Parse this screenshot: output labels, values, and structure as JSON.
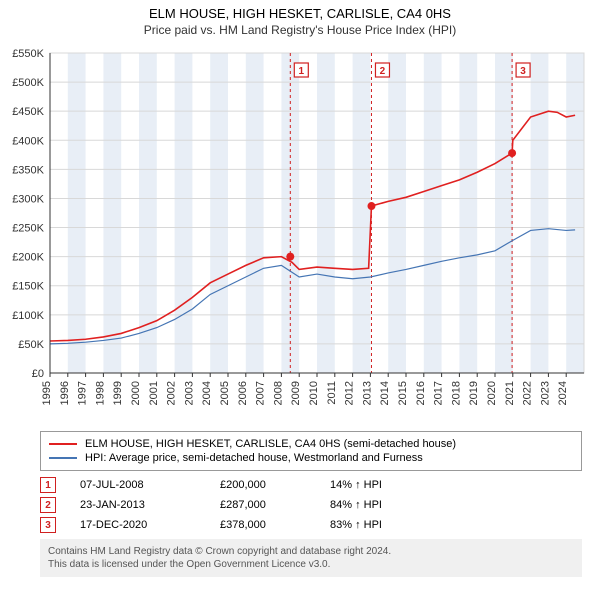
{
  "title": "ELM HOUSE, HIGH HESKET, CARLISLE, CA4 0HS",
  "subtitle": "Price paid vs. HM Land Registry's House Price Index (HPI)",
  "chart": {
    "type": "line",
    "background_color": "#ffffff",
    "grid_color": "#d8d8d8",
    "axis_color": "#333333",
    "band_color": "#e8eef6",
    "xlim": [
      1995,
      2025
    ],
    "ylim": [
      0,
      550000
    ],
    "ytick_step": 50000,
    "ytick_prefix": "£",
    "ytick_suffix": "K",
    "xticks": [
      1995,
      1996,
      1997,
      1998,
      1999,
      2000,
      2001,
      2002,
      2003,
      2004,
      2005,
      2006,
      2007,
      2008,
      2009,
      2010,
      2011,
      2012,
      2013,
      2014,
      2015,
      2016,
      2017,
      2018,
      2019,
      2020,
      2021,
      2022,
      2023,
      2024
    ],
    "bands_even_years": true,
    "series": [
      {
        "id": "property",
        "label": "ELM HOUSE, HIGH HESKET, CARLISLE, CA4 0HS (semi-detached house)",
        "color": "#e02020",
        "line_width": 1.6,
        "points": [
          [
            1995,
            55000
          ],
          [
            1996,
            56000
          ],
          [
            1997,
            58000
          ],
          [
            1998,
            62000
          ],
          [
            1999,
            68000
          ],
          [
            2000,
            78000
          ],
          [
            2001,
            90000
          ],
          [
            2002,
            108000
          ],
          [
            2003,
            130000
          ],
          [
            2004,
            155000
          ],
          [
            2005,
            170000
          ],
          [
            2006,
            185000
          ],
          [
            2007,
            198000
          ],
          [
            2008,
            200000
          ],
          [
            2008.6,
            190000
          ],
          [
            2009,
            178000
          ],
          [
            2010,
            182000
          ],
          [
            2011,
            180000
          ],
          [
            2012,
            178000
          ],
          [
            2012.9,
            180000
          ],
          [
            2013.06,
            287000
          ],
          [
            2014,
            295000
          ],
          [
            2015,
            302000
          ],
          [
            2016,
            312000
          ],
          [
            2017,
            322000
          ],
          [
            2018,
            332000
          ],
          [
            2019,
            345000
          ],
          [
            2020,
            360000
          ],
          [
            2020.96,
            378000
          ],
          [
            2021,
            400000
          ],
          [
            2022,
            440000
          ],
          [
            2023,
            450000
          ],
          [
            2023.5,
            448000
          ],
          [
            2024,
            440000
          ],
          [
            2024.5,
            443000
          ]
        ]
      },
      {
        "id": "hpi",
        "label": "HPI: Average price, semi-detached house, Westmorland and Furness",
        "color": "#4575b4",
        "line_width": 1.2,
        "points": [
          [
            1995,
            50000
          ],
          [
            1996,
            51000
          ],
          [
            1997,
            53000
          ],
          [
            1998,
            56000
          ],
          [
            1999,
            60000
          ],
          [
            2000,
            68000
          ],
          [
            2001,
            78000
          ],
          [
            2002,
            92000
          ],
          [
            2003,
            110000
          ],
          [
            2004,
            135000
          ],
          [
            2005,
            150000
          ],
          [
            2006,
            165000
          ],
          [
            2007,
            180000
          ],
          [
            2008,
            185000
          ],
          [
            2009,
            165000
          ],
          [
            2010,
            170000
          ],
          [
            2011,
            165000
          ],
          [
            2012,
            162000
          ],
          [
            2013,
            165000
          ],
          [
            2014,
            172000
          ],
          [
            2015,
            178000
          ],
          [
            2016,
            185000
          ],
          [
            2017,
            192000
          ],
          [
            2018,
            198000
          ],
          [
            2019,
            203000
          ],
          [
            2020,
            210000
          ],
          [
            2021,
            228000
          ],
          [
            2022,
            245000
          ],
          [
            2023,
            248000
          ],
          [
            2024,
            245000
          ],
          [
            2024.5,
            246000
          ]
        ]
      }
    ],
    "sale_markers": [
      {
        "n": "1",
        "year": 2008.5,
        "price": 200000
      },
      {
        "n": "2",
        "year": 2013.06,
        "price": 287000
      },
      {
        "n": "3",
        "year": 2020.96,
        "price": 378000
      }
    ],
    "marker_vline_color": "#d02020",
    "marker_box_border": "#d02020",
    "marker_box_text": "#d02020",
    "marker_dot_color": "#e02020",
    "label_fontsize": 11
  },
  "legend": {
    "items": [
      {
        "color": "#e02020",
        "label": "ELM HOUSE, HIGH HESKET, CARLISLE, CA4 0HS (semi-detached house)"
      },
      {
        "color": "#4575b4",
        "label": "HPI: Average price, semi-detached house, Westmorland and Furness"
      }
    ]
  },
  "sales_table": {
    "rows": [
      {
        "n": "1",
        "date": "07-JUL-2008",
        "price": "£200,000",
        "pct": "14% ↑ HPI"
      },
      {
        "n": "2",
        "date": "23-JAN-2013",
        "price": "£287,000",
        "pct": "84% ↑ HPI"
      },
      {
        "n": "3",
        "date": "17-DEC-2020",
        "price": "£378,000",
        "pct": "83% ↑ HPI"
      }
    ]
  },
  "attribution": {
    "line1": "Contains HM Land Registry data © Crown copyright and database right 2024.",
    "line2": "This data is licensed under the Open Government Licence v3.0."
  }
}
